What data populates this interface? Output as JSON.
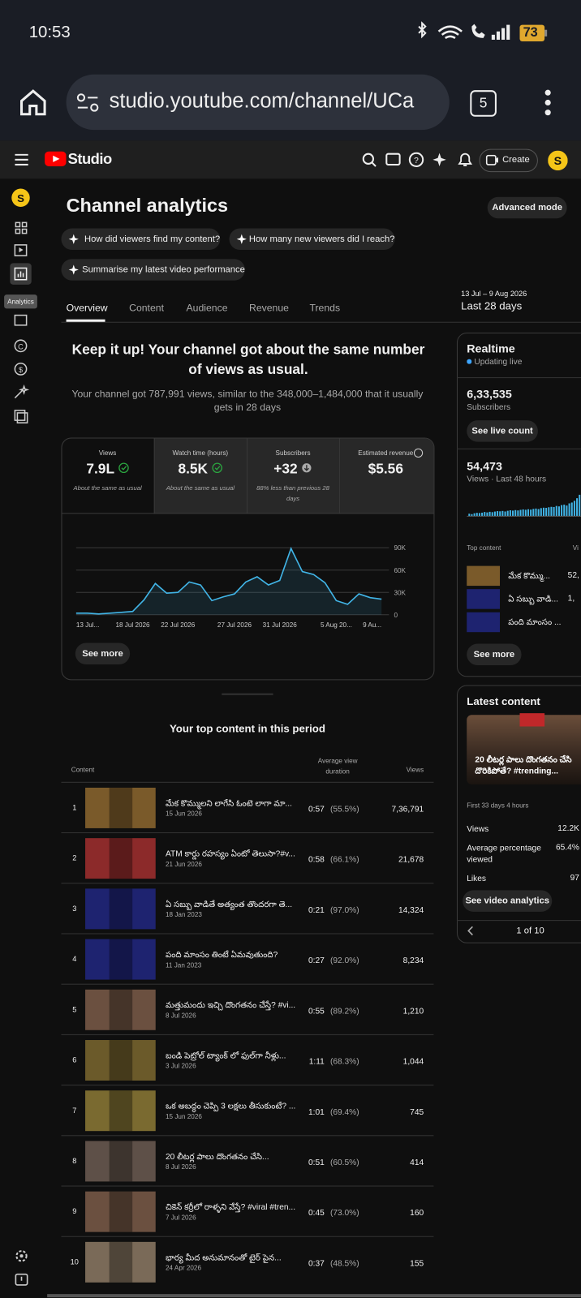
{
  "status_bar": {
    "time": "10:53",
    "battery": "73"
  },
  "browser": {
    "url": "studio.youtube.com/channel/UCa",
    "tab_count": "5"
  },
  "header": {
    "logo": "Studio",
    "create": "Create"
  },
  "sidebar": {
    "tooltip": "Analytics"
  },
  "page": {
    "title": "Channel analytics",
    "advanced_mode": "Advanced mode"
  },
  "prompts": [
    "How did viewers find my content?",
    "How many new viewers did I reach?",
    "Summarise my latest video performance"
  ],
  "tabs": [
    "Overview",
    "Content",
    "Audience",
    "Revenue",
    "Trends"
  ],
  "date_range": {
    "range": "13 Jul – 9 Aug 2026",
    "label": "Last 28 days"
  },
  "summary": {
    "headline": "Keep it up! Your channel got about the same number of views as usual.",
    "text": "Your channel got 787,991 views, similar to the 348,000–1,484,000 that it usually gets in 28 days"
  },
  "metrics": [
    {
      "label": "Views",
      "value": "7.9L",
      "note": "About the same as usual"
    },
    {
      "label": "Watch time (hours)",
      "value": "8.5K",
      "note": "About the same as usual"
    },
    {
      "label": "Subscribers",
      "value": "+32",
      "note": "88% less than previous 28 days"
    },
    {
      "label": "Estimated revenue",
      "value": "$5.56"
    }
  ],
  "chart": {
    "type": "line",
    "categories": [
      "13 Jul...",
      null,
      null,
      null,
      null,
      "18 Jul 2026",
      null,
      null,
      null,
      "22 Jul 2026",
      null,
      null,
      null,
      null,
      "27 Jul 2026",
      null,
      null,
      null,
      "31 Jul 2026",
      null,
      null,
      null,
      null,
      "5 Aug 20...",
      null,
      null,
      null,
      "9 Au..."
    ],
    "values": [
      2200,
      2200,
      1100,
      2200,
      3300,
      4400,
      20000,
      42000,
      29000,
      30000,
      44000,
      40000,
      19000,
      24000,
      28000,
      44000,
      51000,
      40000,
      46000,
      89000,
      58000,
      54000,
      43000,
      19000,
      14000,
      28000,
      23000,
      21000
    ],
    "color": "#41b4e6",
    "ylim": [
      0,
      100000
    ],
    "yticks": [
      {
        "value": 90000,
        "label": "90K"
      },
      {
        "value": 60000,
        "label": "60K"
      },
      {
        "value": 30000,
        "label": "30K"
      },
      0
    ],
    "grid": true
  },
  "see_more": "See more",
  "realtime": {
    "title": "Realtime",
    "status": "Updating live",
    "subscribers": "6,33,535",
    "subscribers_label": "Subscribers",
    "see_live_count": "See live count",
    "views": "54,473",
    "views_label": "Views · Last 48 hours",
    "bars": {
      "type": "bar",
      "values": [
        300,
        250,
        350,
        400,
        380,
        420,
        500,
        450,
        520,
        480,
        550,
        600,
        580,
        620,
        560,
        640,
        700,
        660,
        720,
        680,
        750,
        800,
        760,
        820,
        780,
        860,
        900,
        840,
        950,
        1000,
        980,
        1050,
        1100,
        1080,
        1200,
        1150,
        1300,
        1350,
        1250,
        1500,
        1600,
        1800,
        2100,
        2500
      ],
      "color": "#41b4e6",
      "ylim": [
        0,
        2500
      ]
    },
    "top_content_label": "Top content",
    "views_header": "Vi",
    "top_content": [
      {
        "title": "మేక కొమ్ము...",
        "views": "52,"
      },
      {
        "title": "ఏ సబ్బు వాడి...",
        "views": "1,"
      },
      {
        "title": "పంది మాంసం ..."
      }
    ],
    "see_more": "See more"
  },
  "latest_content": {
    "title": "Latest content",
    "video_title": "20 లీటర్ల పాలు దొంగతనం చేసి దొరికిపోతే? #trending...",
    "period": "First 33 days 4 hours",
    "stats": [
      {
        "label": "Views",
        "value": "12.2K"
      },
      {
        "label": "Average percentage viewed",
        "value": "65.4%"
      },
      {
        "label": "Likes",
        "value": "97"
      }
    ],
    "button": "See video analytics",
    "pager": "1 of 10"
  },
  "top_content": {
    "title": "Your top content in this period",
    "headers": [
      "Content",
      "Average view duration",
      "Views"
    ],
    "rows": [
      {
        "rank": "1",
        "title": "మేక కొమ్ములని లాగేసి ఓంటె లాగా మా...",
        "date": "15 Jun 2026",
        "duration": "0:57",
        "percent": "(55.5%)",
        "views": "7,36,791"
      },
      {
        "rank": "2",
        "title": "ATM కార్డు రహస్యం ఏంటో తెలుసా?#v...",
        "date": "21 Jun 2026",
        "duration": "0:58",
        "percent": "(66.1%)",
        "views": "21,678"
      },
      {
        "rank": "3",
        "title": "ఏ సబ్బు వాడితే అత్యంత తొందరగా తె...",
        "date": "18 Jan 2023",
        "duration": "0:21",
        "percent": "(97.0%)",
        "views": "14,324"
      },
      {
        "rank": "4",
        "title": "పంది మాంసం తింటే ఏమవుతుంది?",
        "date": "11 Jan 2023",
        "duration": "0:27",
        "percent": "(92.0%)",
        "views": "8,234"
      },
      {
        "rank": "5",
        "title": "మత్తుమందు ఇచ్చి దొంగతనం చేస్తే? #vi...",
        "date": "8 Jul 2026",
        "duration": "0:55",
        "percent": "(89.2%)",
        "views": "1,210"
      },
      {
        "rank": "6",
        "title": "బండి పెట్రోల్ ట్యాంక్ లో ఫుల్‌గా నీళ్లు...",
        "date": "3 Jul 2026",
        "duration": "1:11",
        "percent": "(68.3%)",
        "views": "1,044"
      },
      {
        "rank": "7",
        "title": "ఒక అబద్ధం చెప్పి 3 లక్షలు తీసుకుంటే? ...",
        "date": "15 Jun 2026",
        "duration": "1:01",
        "percent": "(69.4%)",
        "views": "745"
      },
      {
        "rank": "8",
        "title": "20 లీటర్ల పాలు దొంగతనం చేసి...",
        "date": "8 Jul 2026",
        "duration": "0:51",
        "percent": "(60.5%)",
        "views": "414"
      },
      {
        "rank": "9",
        "title": "చికెన్ కర్రీలో రాళ్ళని వేస్తే? #viral #tren...",
        "date": "7 Jul 2026",
        "duration": "0:45",
        "percent": "(73.0%)",
        "views": "160"
      },
      {
        "rank": "10",
        "title": "భార్య మీద అనుమానంతో టైర్ పైన...",
        "date": "24 Apr 2026",
        "duration": "0:37",
        "percent": "(48.5%)",
        "views": "155"
      }
    ]
  }
}
